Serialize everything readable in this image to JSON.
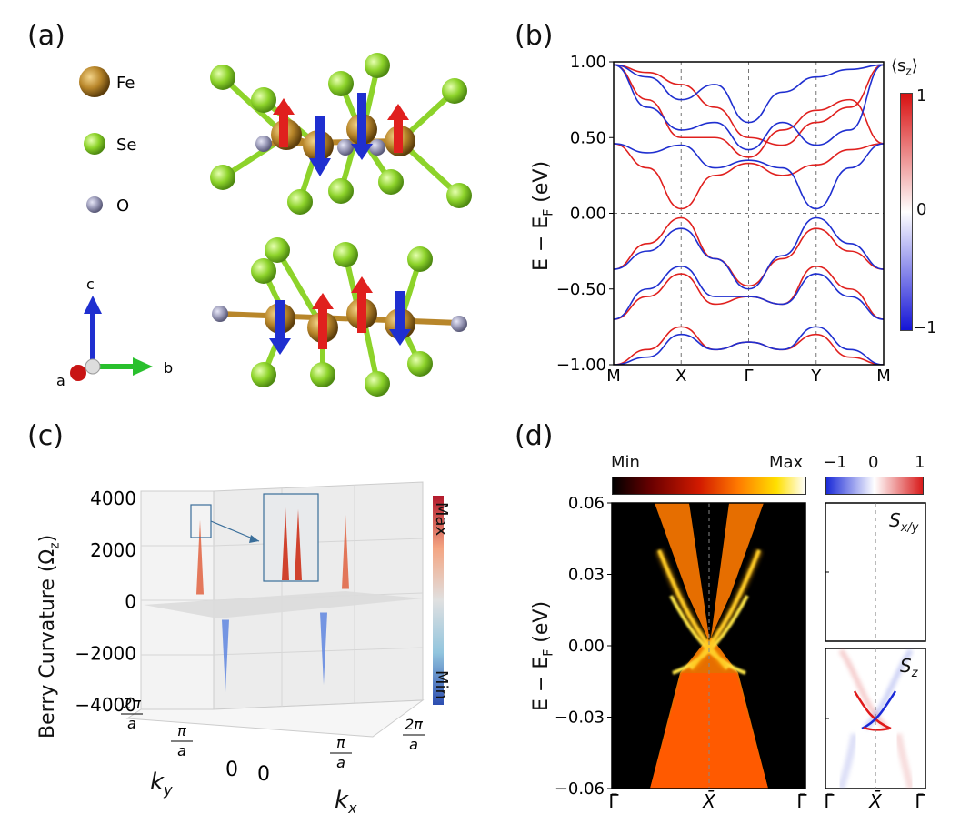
{
  "panels": {
    "a": {
      "label": "(a)",
      "legend": [
        {
          "symbol": "Fe",
          "color": "#b8862a"
        },
        {
          "symbol": "Se",
          "color": "#8dd32a"
        },
        {
          "symbol": "O",
          "color": "#9a9ab8"
        }
      ],
      "axes": {
        "c": "c",
        "a": "a",
        "b": "b"
      },
      "colors": {
        "spin_up": "#e0201e",
        "spin_down": "#1f2fd0",
        "bond_fe": "#b8862a",
        "bond_se": "#8dd32a"
      }
    },
    "b": {
      "label": "(b)",
      "ylabel": "E − E",
      "ylabel_sub": "F",
      "ylabel_unit": " (eV)",
      "colorbar_title": "⟨s",
      "colorbar_title_sub": "z",
      "colorbar_title_end": "⟩",
      "colorbar_ticks": [
        "1",
        "0",
        "−1"
      ]
    },
    "c": {
      "label": "(c)",
      "zlabel": "Berry Curvature (Ω",
      "zlabel_sub": "z",
      "zlabel_end": ")",
      "colorbar_max": "Max",
      "colorbar_min": "Min",
      "ky_label": "k",
      "ky_sub": "y",
      "kx_label": "k",
      "kx_sub": "x"
    },
    "d": {
      "label": "(d)",
      "ylabel": "E − E",
      "ylabel_sub": "F",
      "ylabel_unit": " (eV)",
      "cb1_min": "Min",
      "cb1_max": "Max",
      "cb2_ticks": [
        "−1",
        "0",
        "1"
      ],
      "inset1_label": "S",
      "inset1_sub": "x/y",
      "inset2_label": "S",
      "inset2_sub": "z"
    }
  },
  "chart_data": [
    {
      "type": "line",
      "panel": "b",
      "title": "",
      "xlabel": "",
      "ylabel": "E − E_F (eV)",
      "x_ticks": [
        "M",
        "X",
        "Γ",
        "Y",
        "M"
      ],
      "y_ticks": [
        "1.00",
        "0.50",
        "0.00",
        "−0.50",
        "−1.00"
      ],
      "y_tick_values": [
        1.0,
        0.5,
        0.0,
        -0.5,
        -1.0
      ],
      "ylim": [
        -1.0,
        1.0
      ],
      "xlim": [
        0,
        4
      ],
      "fermi_level": 0.0,
      "series": [
        {
          "name": "spin up (red)",
          "color": "#e0201e",
          "bands": [
            {
              "x": [
                0,
                0.5,
                1,
                1.5,
                2,
                2.5,
                3,
                3.5,
                4
              ],
              "y": [
                0.46,
                0.3,
                0.03,
                0.25,
                0.33,
                0.25,
                0.32,
                0.42,
                0.46
              ]
            },
            {
              "x": [
                0,
                0.5,
                1,
                1.5,
                2,
                2.5,
                3,
                3.5,
                4
              ],
              "y": [
                0.98,
                0.75,
                0.5,
                0.5,
                0.37,
                0.55,
                0.68,
                0.75,
                0.46
              ]
            },
            {
              "x": [
                0,
                0.5,
                1,
                1.5,
                2,
                2.5,
                3,
                3.5,
                4
              ],
              "y": [
                0.98,
                0.93,
                0.85,
                0.7,
                0.5,
                0.45,
                0.6,
                0.7,
                0.98
              ]
            },
            {
              "x": [
                0,
                0.5,
                1,
                1.5,
                2,
                2.5,
                3,
                3.5,
                4
              ],
              "y": [
                -0.37,
                -0.2,
                -0.03,
                -0.3,
                -0.48,
                -0.3,
                -0.1,
                -0.25,
                -0.37
              ]
            },
            {
              "x": [
                0,
                0.5,
                1,
                1.5,
                2,
                2.5,
                3,
                3.5,
                4
              ],
              "y": [
                -0.7,
                -0.55,
                -0.4,
                -0.6,
                -0.55,
                -0.6,
                -0.35,
                -0.5,
                -0.7
              ]
            },
            {
              "x": [
                0,
                0.5,
                1,
                1.5,
                2,
                2.5,
                3,
                3.5,
                4
              ],
              "y": [
                -1.0,
                -0.9,
                -0.75,
                -0.9,
                -0.85,
                -0.9,
                -0.8,
                -0.95,
                -1.0
              ]
            }
          ]
        },
        {
          "name": "spin down (blue)",
          "color": "#1f2fd0",
          "bands": [
            {
              "x": [
                0,
                0.5,
                1,
                1.5,
                2,
                2.5,
                3,
                3.5,
                4
              ],
              "y": [
                0.46,
                0.4,
                0.45,
                0.3,
                0.35,
                0.3,
                0.03,
                0.3,
                0.46
              ]
            },
            {
              "x": [
                0,
                0.5,
                1,
                1.5,
                2,
                2.5,
                3,
                3.5,
                4
              ],
              "y": [
                0.98,
                0.7,
                0.55,
                0.6,
                0.42,
                0.6,
                0.45,
                0.55,
                0.98
              ]
            },
            {
              "x": [
                0,
                0.5,
                1,
                1.5,
                2,
                2.5,
                3,
                3.5,
                4
              ],
              "y": [
                0.98,
                0.9,
                0.75,
                0.85,
                0.6,
                0.8,
                0.9,
                0.95,
                0.98
              ]
            },
            {
              "x": [
                0,
                0.5,
                1,
                1.5,
                2,
                2.5,
                3,
                3.5,
                4
              ],
              "y": [
                -0.37,
                -0.25,
                -0.1,
                -0.3,
                -0.5,
                -0.28,
                -0.03,
                -0.2,
                -0.37
              ]
            },
            {
              "x": [
                0,
                0.5,
                1,
                1.5,
                2,
                2.5,
                3,
                3.5,
                4
              ],
              "y": [
                -0.7,
                -0.5,
                -0.35,
                -0.55,
                -0.55,
                -0.6,
                -0.4,
                -0.55,
                -0.7
              ]
            },
            {
              "x": [
                0,
                0.5,
                1,
                1.5,
                2,
                2.5,
                3,
                3.5,
                4
              ],
              "y": [
                -1.0,
                -0.95,
                -0.8,
                -0.9,
                -0.85,
                -0.9,
                -0.75,
                -0.9,
                -1.0
              ]
            }
          ]
        }
      ]
    },
    {
      "type": "surface",
      "panel": "c",
      "title": "",
      "zlabel": "Berry Curvature (Ω_z)",
      "z_ticks": [
        "4000",
        "2000",
        "0",
        "−2000",
        "−4000"
      ],
      "z_tick_values": [
        4000,
        2000,
        0,
        -2000,
        -4000
      ],
      "zlim": [
        -4000,
        4000
      ],
      "kx_ticks": [
        "0",
        "π/a",
        "2π/a"
      ],
      "ky_ticks": [
        "0",
        "π/a",
        "2π/a"
      ],
      "peaks": [
        {
          "sign": "positive",
          "z": 3600
        },
        {
          "sign": "positive",
          "z": 3600
        },
        {
          "sign": "negative",
          "z": -3500
        },
        {
          "sign": "negative",
          "z": -3500
        }
      ]
    },
    {
      "type": "heatmap",
      "panel": "d",
      "title": "",
      "ylabel": "E − E_F (eV)",
      "y_ticks": [
        "0.06",
        "0.03",
        "0.00",
        "−0.03",
        "−0.06"
      ],
      "y_tick_values": [
        0.06,
        0.03,
        0.0,
        -0.03,
        -0.06
      ],
      "ylim": [
        -0.06,
        0.06
      ],
      "x_ticks": [
        "Γ̄",
        "X̄",
        "Γ̄"
      ],
      "inset_x_ticks": [
        "Γ̄",
        "X̄",
        "Γ̄"
      ],
      "colorbar": [
        "Min",
        "Max"
      ]
    }
  ]
}
